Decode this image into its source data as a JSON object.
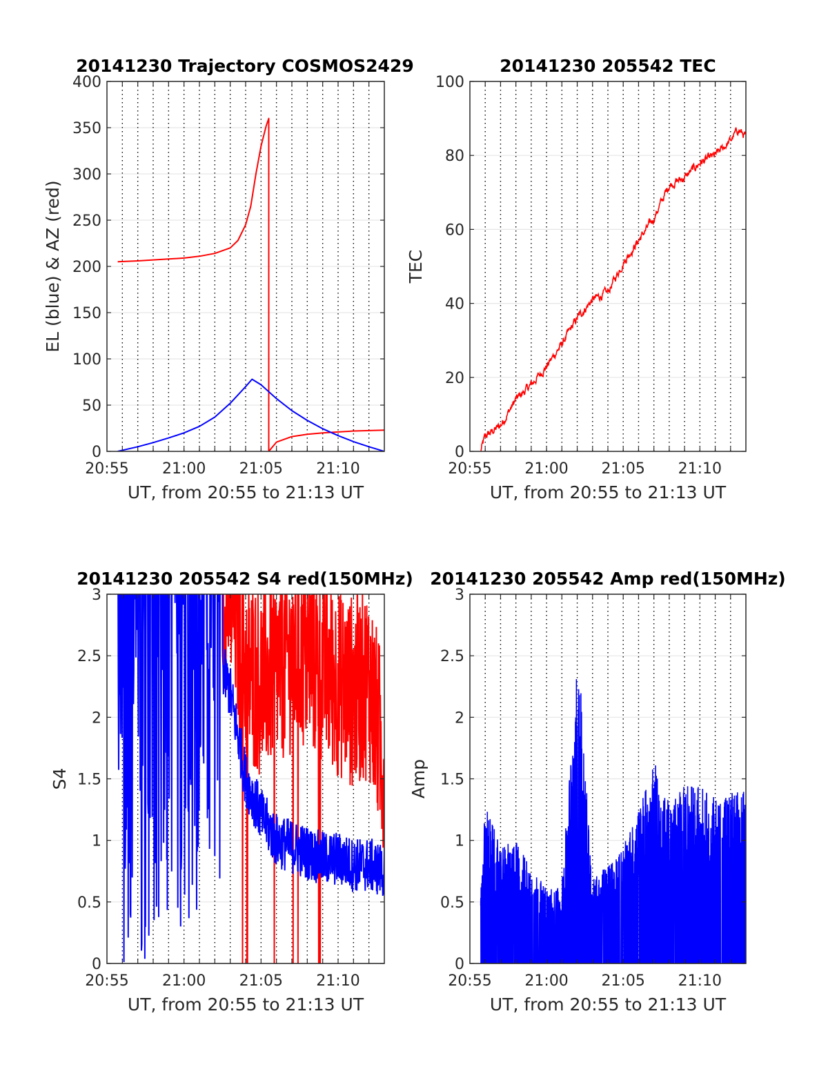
{
  "chart_data": [
    {
      "type": "line",
      "title": "20141230 Trajectory COSMOS2429",
      "xlabel": "UT, from 20:55 to 21:13 UT",
      "ylabel": "EL (blue) & AZ (red)",
      "x_ticks": [
        "20:55",
        "21:00",
        "21:05",
        "21:10"
      ],
      "y_ticks": [
        "0",
        "50",
        "100",
        "150",
        "200",
        "250",
        "300",
        "350",
        "400"
      ],
      "xlim": [
        "20:55",
        "21:13"
      ],
      "ylim": [
        0,
        400
      ],
      "grid": "vertical dotted lines every minute, horizontal solid grid at y ticks",
      "series": [
        {
          "color": "#ff0000",
          "x": [
            "20:55:42",
            "20:57",
            "20:59",
            "21:00",
            "21:01",
            "21:02",
            "21:03",
            "21:03:30",
            "21:04",
            "21:04:20",
            "21:04:40",
            "21:05",
            "21:05:20",
            "21:05:30",
            "21:05:30",
            "21:06",
            "21:07",
            "21:08",
            "21:09",
            "21:10",
            "21:11",
            "21:12",
            "21:13"
          ],
          "values": [
            205,
            206,
            208,
            209,
            211,
            214,
            220,
            228,
            245,
            265,
            300,
            330,
            352,
            360,
            0,
            10,
            16,
            18.5,
            20,
            21,
            22,
            22.5,
            23
          ]
        },
        {
          "color": "#0000ff",
          "x": [
            "20:55:42",
            "20:57",
            "20:58",
            "20:59",
            "21:00",
            "21:01",
            "21:02",
            "21:03",
            "21:04",
            "21:04:25",
            "21:05",
            "21:06",
            "21:07",
            "21:08",
            "21:09",
            "21:10",
            "21:11",
            "21:12",
            "21:13"
          ],
          "values": [
            0,
            5,
            9.5,
            14.5,
            20,
            27,
            37,
            52,
            70,
            78,
            72,
            57,
            44,
            33.5,
            24.5,
            17,
            10.5,
            5,
            0
          ]
        }
      ]
    },
    {
      "type": "line",
      "title": "20141230 205542 TEC",
      "xlabel": "UT, from 20:55 to 21:13 UT",
      "ylabel": "TEC",
      "x_ticks": [
        "20:55",
        "21:00",
        "21:05",
        "21:10"
      ],
      "y_ticks": [
        "0",
        "20",
        "40",
        "60",
        "80",
        "100"
      ],
      "xlim": [
        "20:55",
        "21:13"
      ],
      "ylim": [
        0,
        100
      ],
      "series": [
        {
          "color": "#ff0000",
          "x": [
            "20:55:42",
            "20:56",
            "20:57",
            "20:58",
            "20:59",
            "21:00",
            "21:01",
            "21:02",
            "21:03",
            "21:04",
            "21:05",
            "21:06",
            "21:07",
            "21:08",
            "21:09",
            "21:10",
            "21:11",
            "21:12",
            "21:12:30",
            "21:13"
          ],
          "values": [
            0,
            4,
            7,
            14,
            18,
            23,
            29,
            36,
            41,
            43,
            51,
            57,
            63,
            72,
            74,
            78,
            80,
            84,
            87,
            85
          ]
        }
      ]
    },
    {
      "type": "line",
      "title": "20141230 205542 S4 red(150MHz)",
      "xlabel": "UT, from 20:55 to 21:13 UT",
      "ylabel": "S4",
      "x_ticks": [
        "20:55",
        "21:00",
        "21:05",
        "21:10"
      ],
      "y_ticks": [
        "0",
        "0.5",
        "1",
        "1.5",
        "2",
        "2.5",
        "3"
      ],
      "xlim": [
        "20:55",
        "21:13"
      ],
      "ylim": [
        0,
        3
      ],
      "series": [
        {
          "color": "#ff0000",
          "description_values": "very noisy; mostly clipped near 3 with drops to about 1.2–2.2 after 21:03 and occasional spikes to 0",
          "x": [
            "20:55:42",
            "21:00",
            "21:03",
            "21:04",
            "21:05",
            "21:06",
            "21:07",
            "21:08",
            "21:09",
            "21:10",
            "21:11",
            "21:12",
            "21:13"
          ],
          "values": [
            3,
            3,
            3,
            2.4,
            2.3,
            2.4,
            2.5,
            2.5,
            2.4,
            2.3,
            2.2,
            2.3,
            1.6
          ]
        },
        {
          "color": "#0000ff",
          "description_values": "noisy; saturated 0–3 until about 21:02, then decaying from about 1.5 at 21:04 to about 0.8 by 21:13",
          "x": [
            "20:55:42",
            "21:00",
            "21:02",
            "21:03",
            "21:04",
            "21:05",
            "21:06",
            "21:07",
            "21:08",
            "21:09",
            "21:10",
            "21:11",
            "21:12",
            "21:13"
          ],
          "values": [
            3,
            3,
            2.6,
            2.2,
            1.5,
            1.2,
            1.0,
            0.95,
            0.9,
            0.85,
            0.85,
            0.8,
            0.8,
            0.75
          ]
        }
      ]
    },
    {
      "type": "line",
      "title": "20141230 205542 Amp red(150MHz)",
      "xlabel": "UT, from 20:55 to 21:13 UT",
      "ylabel": "Amp",
      "x_ticks": [
        "20:55",
        "21:00",
        "21:05",
        "21:10"
      ],
      "y_ticks": [
        "0",
        "0.5",
        "1",
        "1.5",
        "2",
        "2.5",
        "3"
      ],
      "xlim": [
        "20:55",
        "21:13"
      ],
      "ylim": [
        0,
        3
      ],
      "series": [
        {
          "color": "#0000ff",
          "description_values": "dense noise filled from 0 up to an envelope; peak about 2.45 near 21:02, secondary peak about 1.65 near 21:07",
          "x": [
            "20:55:42",
            "20:56",
            "20:57",
            "20:58",
            "20:59",
            "21:00",
            "21:01",
            "21:02",
            "21:02:10",
            "21:03",
            "21:04",
            "21:05",
            "21:06",
            "21:07",
            "21:08",
            "21:09",
            "21:10",
            "21:11",
            "21:12",
            "21:13"
          ],
          "values": [
            0.6,
            1.3,
            0.95,
            1.0,
            0.8,
            0.6,
            0.65,
            2.45,
            2.4,
            0.7,
            0.8,
            0.95,
            1.25,
            1.65,
            1.3,
            1.45,
            1.45,
            1.35,
            1.4,
            1.4
          ]
        }
      ]
    }
  ]
}
